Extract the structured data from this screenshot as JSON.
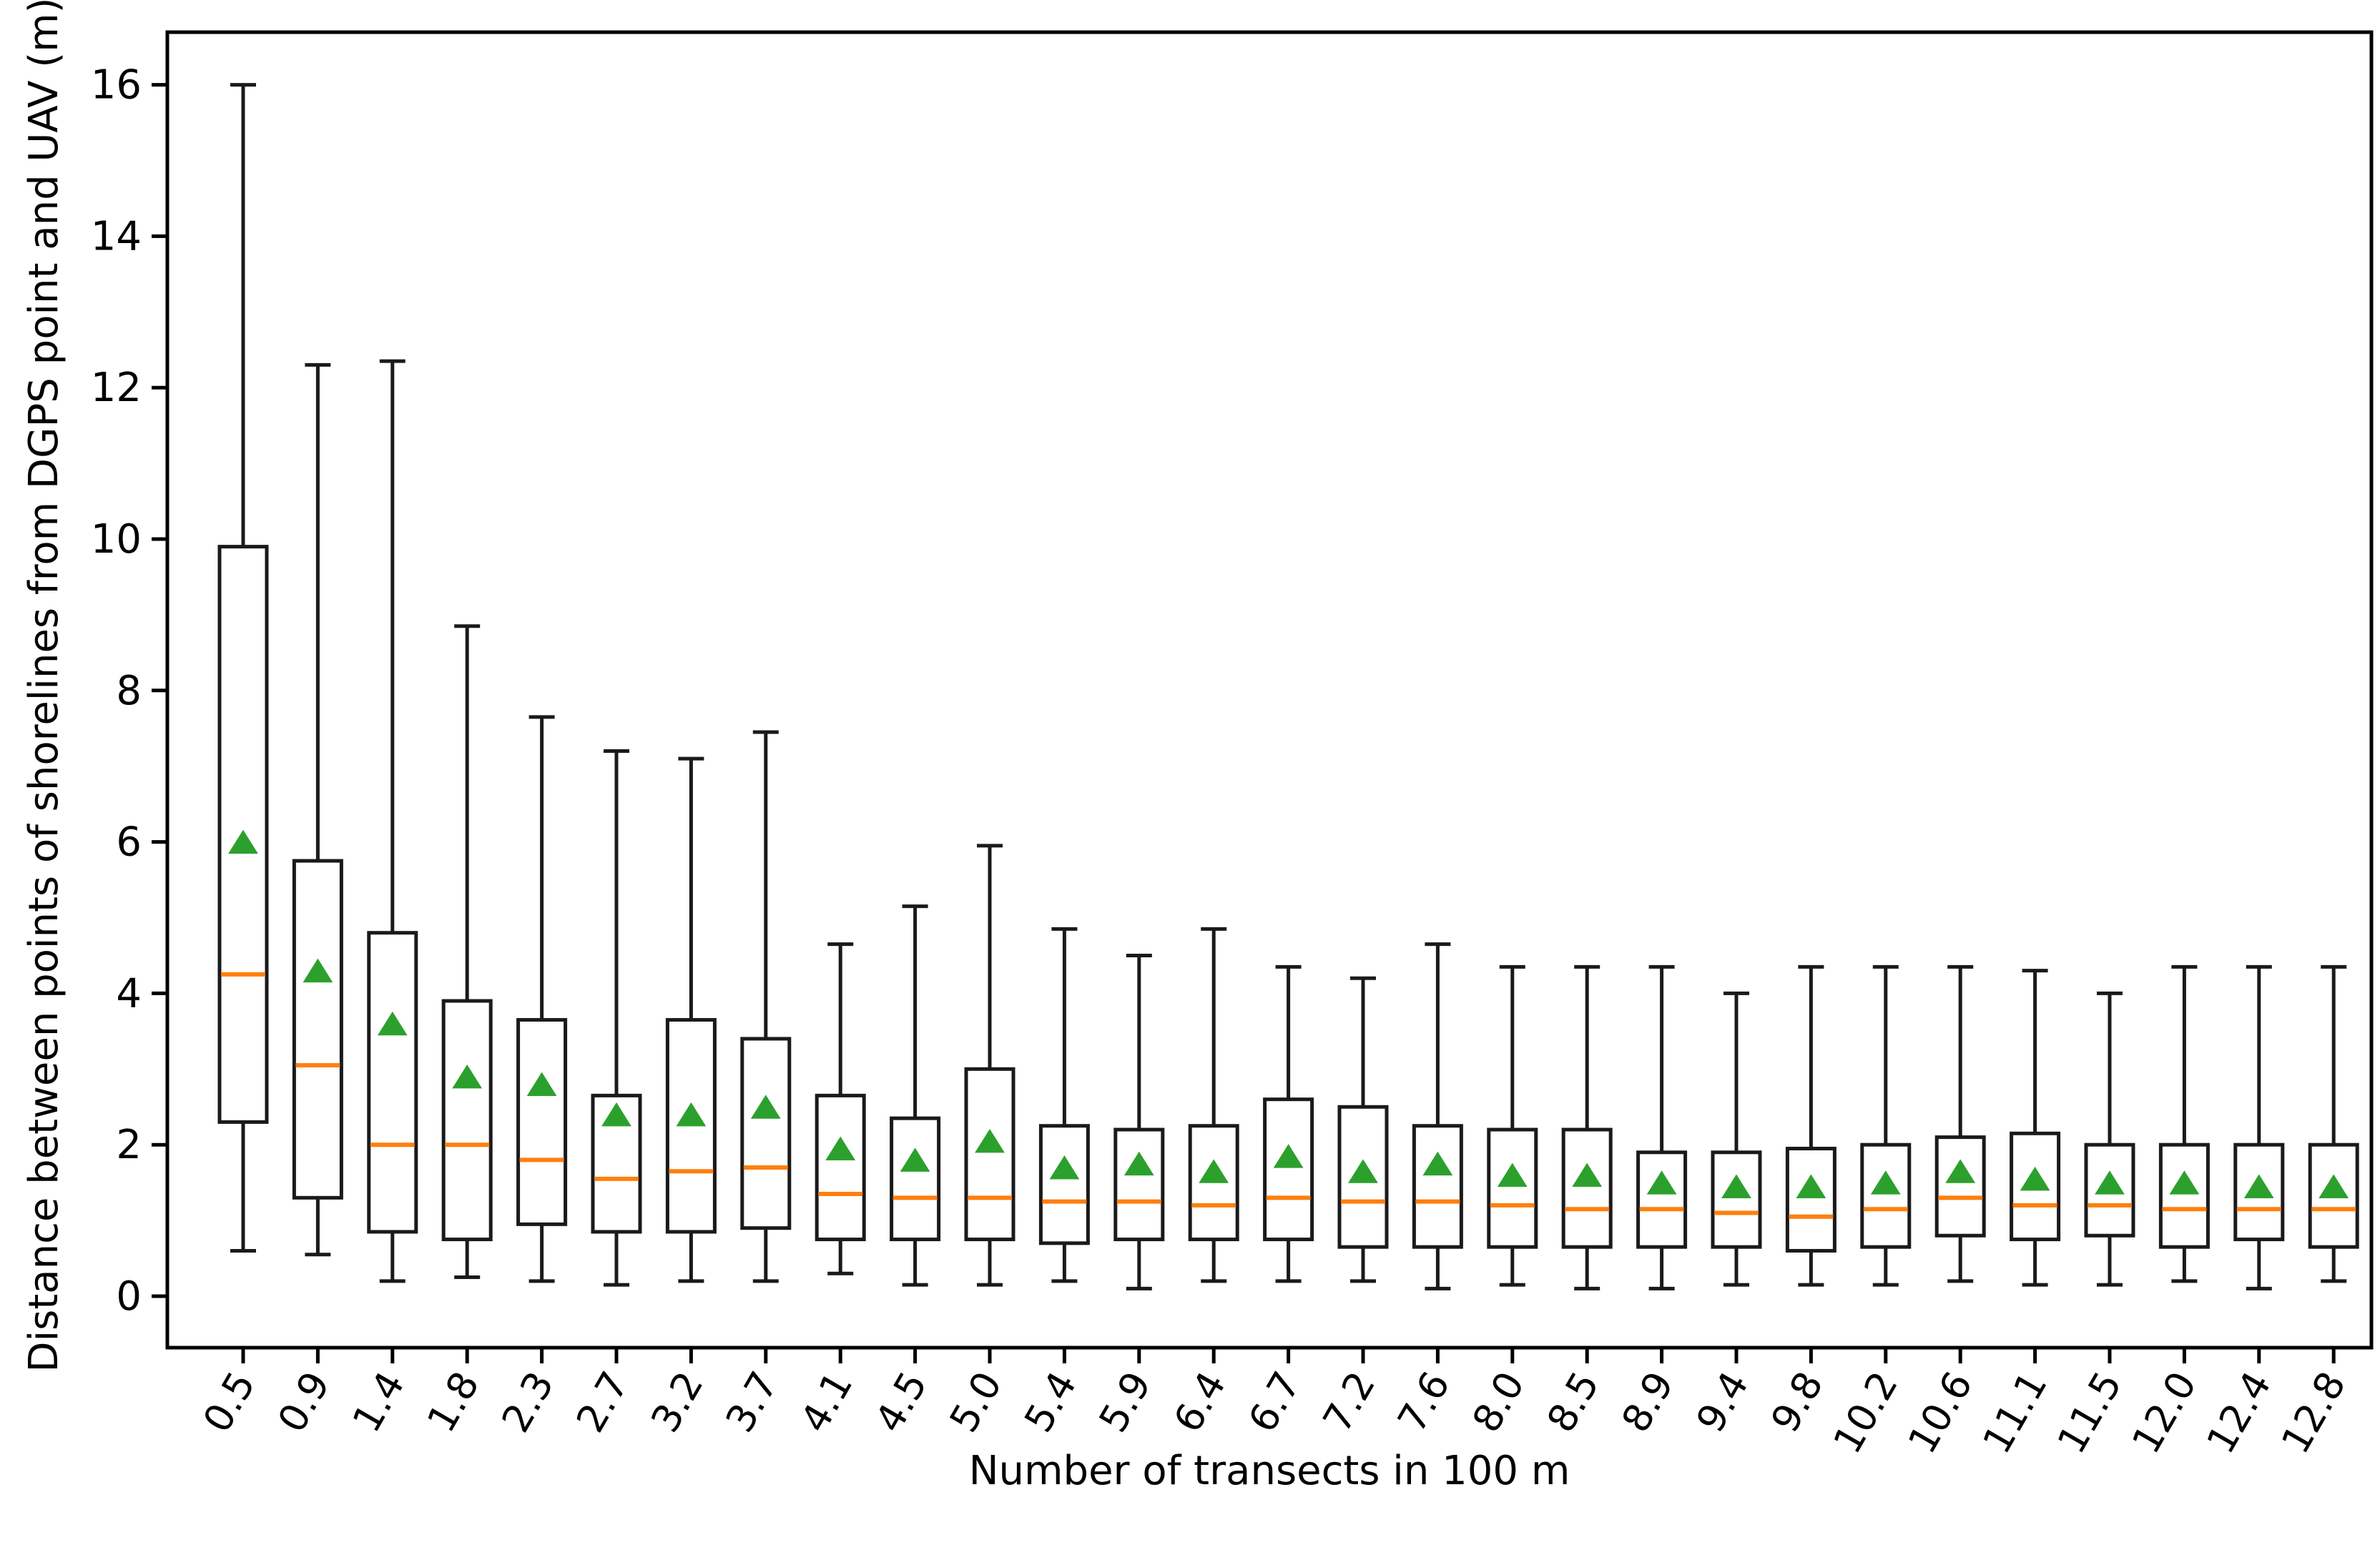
{
  "figure": {
    "xlabel": "Number of transects in 100 m",
    "ylabel": "Distance between points of shorelines from DGPS point and UAV (m)"
  },
  "chart_data": {
    "type": "boxplot",
    "title": "",
    "xlabel": "Number of transects in 100 m",
    "ylabel": "Distance between points of shorelines from DGPS point and UAV (m)",
    "legend": "none",
    "grid": false,
    "background_color": "#ffffff",
    "yticks": [
      0,
      2,
      4,
      6,
      8,
      10,
      12,
      14,
      16
    ],
    "ylim": [
      -0.7,
      16.7
    ],
    "categories": [
      "0.5",
      "0.9",
      "1.4",
      "1.8",
      "2.3",
      "2.7",
      "3.2",
      "3.7",
      "4.1",
      "4.5",
      "5.0",
      "5.4",
      "5.9",
      "6.4",
      "6.7",
      "7.2",
      "7.6",
      "8.0",
      "8.5",
      "8.9",
      "9.4",
      "9.8",
      "10.2",
      "10.6",
      "11.1",
      "11.5",
      "12.0",
      "12.4",
      "12.8"
    ],
    "series": [
      {
        "label": "0.5",
        "whisker_low": 0.6,
        "q1": 2.3,
        "median": 4.25,
        "mean": 6.0,
        "q3": 9.9,
        "whisker_high": 16.0
      },
      {
        "label": "0.9",
        "whisker_low": 0.55,
        "q1": 1.3,
        "median": 3.05,
        "mean": 4.3,
        "q3": 5.75,
        "whisker_high": 12.3
      },
      {
        "label": "1.4",
        "whisker_low": 0.2,
        "q1": 0.85,
        "median": 2.0,
        "mean": 3.6,
        "q3": 4.8,
        "whisker_high": 12.35
      },
      {
        "label": "1.8",
        "whisker_low": 0.25,
        "q1": 0.75,
        "median": 2.0,
        "mean": 2.9,
        "q3": 3.9,
        "whisker_high": 8.85
      },
      {
        "label": "2.3",
        "whisker_low": 0.2,
        "q1": 0.95,
        "median": 1.8,
        "mean": 2.8,
        "q3": 3.65,
        "whisker_high": 7.65
      },
      {
        "label": "2.7",
        "whisker_low": 0.15,
        "q1": 0.85,
        "median": 1.55,
        "mean": 2.4,
        "q3": 2.65,
        "whisker_high": 7.2
      },
      {
        "label": "3.2",
        "whisker_low": 0.2,
        "q1": 0.85,
        "median": 1.65,
        "mean": 2.4,
        "q3": 3.65,
        "whisker_high": 7.1
      },
      {
        "label": "3.7",
        "whisker_low": 0.2,
        "q1": 0.9,
        "median": 1.7,
        "mean": 2.5,
        "q3": 3.4,
        "whisker_high": 7.45
      },
      {
        "label": "4.1",
        "whisker_low": 0.3,
        "q1": 0.75,
        "median": 1.35,
        "mean": 1.95,
        "q3": 2.65,
        "whisker_high": 4.65
      },
      {
        "label": "4.5",
        "whisker_low": 0.15,
        "q1": 0.75,
        "median": 1.3,
        "mean": 1.8,
        "q3": 2.35,
        "whisker_high": 5.15
      },
      {
        "label": "5.0",
        "whisker_low": 0.15,
        "q1": 0.75,
        "median": 1.3,
        "mean": 2.05,
        "q3": 3.0,
        "whisker_high": 5.95
      },
      {
        "label": "5.4",
        "whisker_low": 0.2,
        "q1": 0.7,
        "median": 1.25,
        "mean": 1.7,
        "q3": 2.25,
        "whisker_high": 4.85
      },
      {
        "label": "5.9",
        "whisker_low": 0.1,
        "q1": 0.75,
        "median": 1.25,
        "mean": 1.75,
        "q3": 2.2,
        "whisker_high": 4.5
      },
      {
        "label": "6.4",
        "whisker_low": 0.2,
        "q1": 0.75,
        "median": 1.2,
        "mean": 1.65,
        "q3": 2.25,
        "whisker_high": 4.85
      },
      {
        "label": "6.7",
        "whisker_low": 0.2,
        "q1": 0.75,
        "median": 1.3,
        "mean": 1.85,
        "q3": 2.6,
        "whisker_high": 4.35
      },
      {
        "label": "7.2",
        "whisker_low": 0.2,
        "q1": 0.65,
        "median": 1.25,
        "mean": 1.65,
        "q3": 2.5,
        "whisker_high": 4.2
      },
      {
        "label": "7.6",
        "whisker_low": 0.1,
        "q1": 0.65,
        "median": 1.25,
        "mean": 1.75,
        "q3": 2.25,
        "whisker_high": 4.65
      },
      {
        "label": "8.0",
        "whisker_low": 0.15,
        "q1": 0.65,
        "median": 1.2,
        "mean": 1.6,
        "q3": 2.2,
        "whisker_high": 4.35
      },
      {
        "label": "8.5",
        "whisker_low": 0.1,
        "q1": 0.65,
        "median": 1.15,
        "mean": 1.6,
        "q3": 2.2,
        "whisker_high": 4.35
      },
      {
        "label": "8.9",
        "whisker_low": 0.1,
        "q1": 0.65,
        "median": 1.15,
        "mean": 1.5,
        "q3": 1.9,
        "whisker_high": 4.35
      },
      {
        "label": "9.4",
        "whisker_low": 0.15,
        "q1": 0.65,
        "median": 1.1,
        "mean": 1.45,
        "q3": 1.9,
        "whisker_high": 4.0
      },
      {
        "label": "9.8",
        "whisker_low": 0.15,
        "q1": 0.6,
        "median": 1.05,
        "mean": 1.45,
        "q3": 1.95,
        "whisker_high": 4.35
      },
      {
        "label": "10.2",
        "whisker_low": 0.15,
        "q1": 0.65,
        "median": 1.15,
        "mean": 1.5,
        "q3": 2.0,
        "whisker_high": 4.35
      },
      {
        "label": "10.6",
        "whisker_low": 0.2,
        "q1": 0.8,
        "median": 1.3,
        "mean": 1.65,
        "q3": 2.1,
        "whisker_high": 4.35
      },
      {
        "label": "11.1",
        "whisker_low": 0.15,
        "q1": 0.75,
        "median": 1.2,
        "mean": 1.55,
        "q3": 2.15,
        "whisker_high": 4.3
      },
      {
        "label": "11.5",
        "whisker_low": 0.15,
        "q1": 0.8,
        "median": 1.2,
        "mean": 1.5,
        "q3": 2.0,
        "whisker_high": 4.0
      },
      {
        "label": "12.0",
        "whisker_low": 0.2,
        "q1": 0.65,
        "median": 1.15,
        "mean": 1.5,
        "q3": 2.0,
        "whisker_high": 4.35
      },
      {
        "label": "12.4",
        "whisker_low": 0.1,
        "q1": 0.75,
        "median": 1.15,
        "mean": 1.45,
        "q3": 2.0,
        "whisker_high": 4.35
      },
      {
        "label": "12.8",
        "whisker_low": 0.2,
        "q1": 0.65,
        "median": 1.15,
        "mean": 1.45,
        "q3": 2.0,
        "whisker_high": 4.35
      }
    ],
    "colors": {
      "box_line": "#1a1a1a",
      "whisker_line": "#1a1a1a",
      "median_line": "#ff7f0e",
      "mean_marker_fill": "#2ca02c",
      "axis_line": "#000000",
      "tick_label": "#000000"
    },
    "mean_marker": "triangle-up",
    "median_style": "orange-line",
    "layout_hints": {
      "x_tick_label_rotation_deg": 60,
      "frame": "all-four-spines",
      "boxes": 29
    }
  }
}
